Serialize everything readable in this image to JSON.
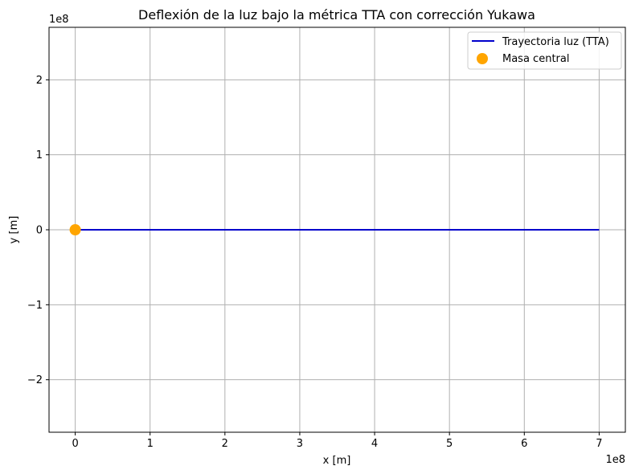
{
  "chart_data": {
    "type": "line",
    "title": "Deflexión de la luz bajo la métrica TTA con corrección Yukawa",
    "xlabel": "x [m]",
    "ylabel": "y [m]",
    "x_offset_text": "1e8",
    "y_offset_text": "1e8",
    "xlim": [
      -0.35,
      7.35
    ],
    "ylim": [
      -2.7,
      2.7
    ],
    "scale_factor": 100000000,
    "x_ticks": [
      0,
      1,
      2,
      3,
      4,
      5,
      6,
      7
    ],
    "x_tick_labels": [
      "0",
      "1",
      "2",
      "3",
      "4",
      "5",
      "6",
      "7"
    ],
    "y_ticks": [
      -2,
      -1,
      0,
      1,
      2
    ],
    "y_tick_labels": [
      "−2",
      "−1",
      "0",
      "1",
      "2"
    ],
    "grid": true,
    "legend_position": "top-right",
    "series": [
      {
        "name": "Trayectoria luz (TTA)",
        "kind": "line",
        "color": "#0000cc",
        "x": [
          0,
          7
        ],
        "y": [
          0,
          0
        ]
      },
      {
        "name": "Masa central",
        "kind": "scatter",
        "color": "#ffa500",
        "x": [
          0
        ],
        "y": [
          0
        ]
      }
    ]
  }
}
